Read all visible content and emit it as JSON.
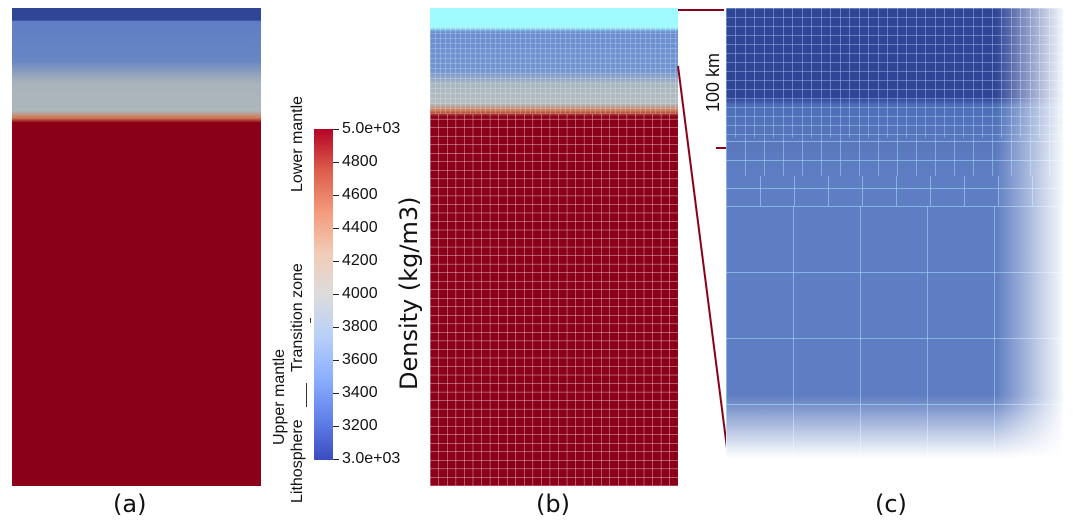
{
  "figure": {
    "captions": {
      "a": "(a)",
      "b": "(b)",
      "c": "(c)"
    },
    "colorbar": {
      "title": "Density (kg/m3)",
      "ticks": [
        "5.0e+03",
        "4800",
        "4600",
        "4400",
        "4200",
        "4000",
        "3800",
        "3600",
        "3400",
        "3200",
        "3.0e+03"
      ],
      "colors": [
        "#b40426",
        "#dc5d4a",
        "#f49a7b",
        "#f2cbb7",
        "#dddcdc",
        "#b9d0f9",
        "#8db0fe",
        "#6282ea",
        "#3b4cc0"
      ]
    },
    "zone_labels": {
      "lower_mantle": "Lower mantle",
      "transition_zone": "Transition zone",
      "upper_mantle": "Upper mantle",
      "lithosphere": "Lithosphere"
    },
    "scale_label": "100 km",
    "colors": {
      "crust": "#2f4596",
      "upper_mantle": "#6282c8",
      "transition": "#a9b4bd",
      "lower_mantle": "#8b0018",
      "mesh_top": "#a0fbff",
      "zoom_line": "#8b0018"
    }
  }
}
